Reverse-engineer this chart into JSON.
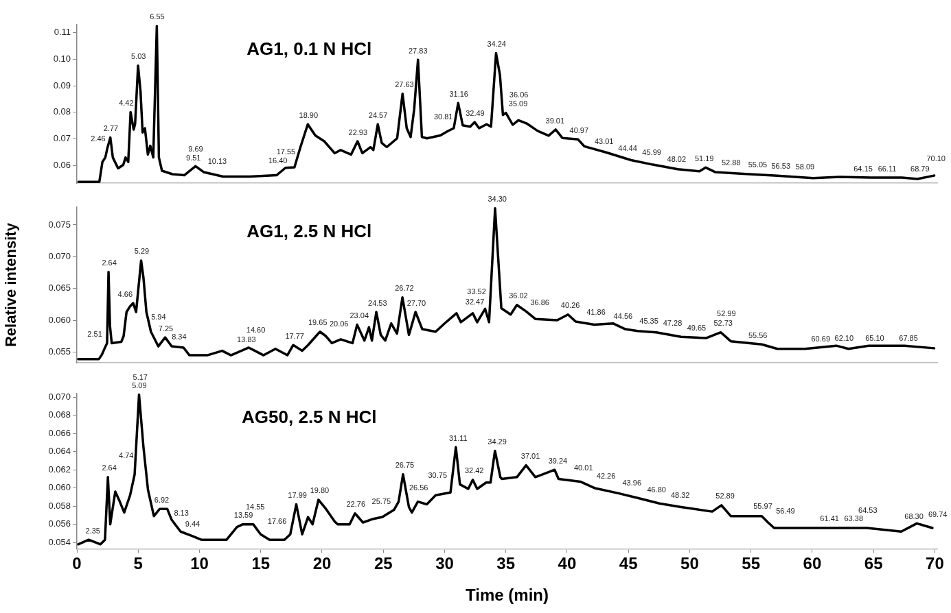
{
  "chart_data": [
    {
      "type": "line",
      "title": "AG1, 0.1 N HCl",
      "color": "#000000",
      "line_style": "solid",
      "grid": false,
      "legend": false,
      "tick_labels": "y",
      "xlim": [
        0,
        70.2
      ],
      "ylim": [
        0.0533,
        0.113
      ],
      "yticks": [
        0.06,
        0.07,
        0.08,
        0.09,
        {
          "value": 0.1,
          "label": "0.10"
        },
        0.11
      ],
      "x": [
        0.13,
        1.83,
        2.08,
        2.32,
        2.49,
        2.73,
        2.93,
        3.36,
        3.78,
        3.97,
        4.19,
        4.38,
        4.63,
        4.75,
        4.99,
        5.19,
        5.36,
        5.55,
        5.79,
        5.99,
        6.23,
        6.52,
        6.69,
        6.94,
        7.79,
        8.76,
        9.68,
        10.34,
        11.92,
        14.1,
        16.29,
        17.02,
        17.75,
        18.24,
        18.84,
        19.45,
        20.18,
        21.03,
        21.52,
        22.37,
        22.9,
        23.29,
        23.95,
        24.19,
        24.55,
        24.87,
        25.28,
        26.13,
        26.57,
        26.91,
        27.23,
        27.52,
        27.83,
        28.15,
        28.56,
        29.66,
        30.26,
        30.75,
        31.11,
        31.48,
        32.09,
        32.45,
        32.82,
        33.42,
        33.79,
        34.2,
        34.52,
        34.76,
        35.0,
        35.56,
        36.02,
        36.7,
        37.59,
        38.49,
        39.06,
        39.62,
        40.89,
        41.4,
        43.18,
        45.21,
        46.99,
        49.02,
        50.8,
        51.31,
        52.07,
        54.61,
        57.15,
        60.07,
        62.24,
        64.78,
        67.32,
        68.58,
        69.86,
        69.95
      ],
      "values": [
        0.0538,
        0.0538,
        0.0613,
        0.063,
        0.0666,
        0.0705,
        0.063,
        0.0589,
        0.0602,
        0.063,
        0.0613,
        0.0801,
        0.0735,
        0.0757,
        0.0976,
        0.0879,
        0.0724,
        0.074,
        0.0641,
        0.0674,
        0.063,
        0.1125,
        0.063,
        0.058,
        0.0567,
        0.0563,
        0.0597,
        0.0575,
        0.0558,
        0.0558,
        0.0563,
        0.0591,
        0.0593,
        0.0669,
        0.0755,
        0.0713,
        0.0691,
        0.0646,
        0.0658,
        0.0641,
        0.0691,
        0.0646,
        0.0669,
        0.0658,
        0.0755,
        0.0685,
        0.0669,
        0.0702,
        0.087,
        0.074,
        0.0707,
        0.0812,
        0.0998,
        0.0707,
        0.0702,
        0.0713,
        0.0729,
        0.074,
        0.0835,
        0.0751,
        0.0746,
        0.0763,
        0.074,
        0.0755,
        0.0746,
        0.1023,
        0.094,
        0.079,
        0.0798,
        0.0753,
        0.077,
        0.0758,
        0.073,
        0.0712,
        0.0735,
        0.0703,
        0.0698,
        0.0672,
        0.0649,
        0.062,
        0.0603,
        0.0586,
        0.0578,
        0.0592,
        0.0575,
        0.0568,
        0.0561,
        0.0552,
        0.0557,
        0.0554,
        0.0554,
        0.0549,
        0.0561,
        0.0562
      ],
      "annotations": [
        {
          "text": "2.46",
          "x": 2.46,
          "y": 0.0666
        },
        {
          "text": "2.77",
          "x": 2.77,
          "y": 0.0705
        },
        {
          "text": "4.42",
          "x": 4.42,
          "y": 0.0801
        },
        {
          "text": "5.03",
          "x": 5.03,
          "y": 0.0976
        },
        {
          "text": "6.55",
          "x": 6.55,
          "y": 0.1125
        },
        {
          "text": "9.51",
          "x": 9.51,
          "y": 0.0595
        },
        {
          "text": "9.69",
          "x": 9.69,
          "y": 0.0597
        },
        {
          "text": "10.13",
          "x": 10.13,
          "y": 0.0582
        },
        {
          "text": "16.40",
          "x": 16.4,
          "y": 0.0563
        },
        {
          "text": "17.55",
          "x": 17.55,
          "y": 0.0593
        },
        {
          "text": "18.90",
          "x": 18.9,
          "y": 0.0755
        },
        {
          "text": "22.93",
          "x": 22.93,
          "y": 0.0691
        },
        {
          "text": "24.57",
          "x": 24.57,
          "y": 0.0755
        },
        {
          "text": "27.63",
          "x": 27.63,
          "y": 0.087
        },
        {
          "text": "27.83",
          "x": 27.83,
          "y": 0.0998
        },
        {
          "text": "30.81",
          "x": 30.81,
          "y": 0.074
        },
        {
          "text": "31.16",
          "x": 31.16,
          "y": 0.0835
        },
        {
          "text": "32.49",
          "x": 32.49,
          "y": 0.0763
        },
        {
          "text": "34.24",
          "x": 34.24,
          "y": 0.1023
        },
        {
          "text": "35.09",
          "x": 35.09,
          "y": 0.0798
        },
        {
          "text": "36.06",
          "x": 36.06,
          "y": 0.077
        },
        {
          "text": "39.01",
          "x": 39.01,
          "y": 0.0735
        },
        {
          "text": "40.97",
          "x": 40.97,
          "y": 0.0698
        },
        {
          "text": "43.01",
          "x": 43.01,
          "y": 0.0649
        },
        {
          "text": "44.44",
          "x": 44.44,
          "y": 0.063
        },
        {
          "text": "45.99",
          "x": 45.99,
          "y": 0.0615
        },
        {
          "text": "48.02",
          "x": 48.02,
          "y": 0.059
        },
        {
          "text": "51.19",
          "x": 51.19,
          "y": 0.0592
        },
        {
          "text": "52.88",
          "x": 52.88,
          "y": 0.0575
        },
        {
          "text": "55.05",
          "x": 55.05,
          "y": 0.0568
        },
        {
          "text": "56.53",
          "x": 56.53,
          "y": 0.0563
        },
        {
          "text": "58.09",
          "x": 58.09,
          "y": 0.0561
        },
        {
          "text": "64.15",
          "x": 64.15,
          "y": 0.0554
        },
        {
          "text": "66.11",
          "x": 66.11,
          "y": 0.0554
        },
        {
          "text": "68.79",
          "x": 68.79,
          "y": 0.0553
        },
        {
          "text": "70.10",
          "x": 70.1,
          "y": 0.0562
        }
      ]
    },
    {
      "type": "line",
      "title": "AG1, 2.5 N HCl",
      "ylabel": "Relative intensity",
      "color": "#000000",
      "line_style": "solid",
      "grid": false,
      "legend": false,
      "tick_labels": "y",
      "xlim": [
        0,
        70.2
      ],
      "ylim": [
        0.0533,
        0.0778
      ],
      "yticks": [
        0.055,
        {
          "value": 0.06,
          "label": "0.060"
        },
        0.065,
        {
          "value": 0.07,
          "label": "0.070"
        },
        0.075
      ],
      "x": [
        0.11,
        1.8,
        2.04,
        2.29,
        2.46,
        2.58,
        2.7,
        2.84,
        3.62,
        3.81,
        4.05,
        4.34,
        4.59,
        4.83,
        5.24,
        5.43,
        5.67,
        6.04,
        6.64,
        7.2,
        7.73,
        8.7,
        9.18,
        10.64,
        11.85,
        12.57,
        14.02,
        15.23,
        16.2,
        17.17,
        17.65,
        18.38,
        18.86,
        19.83,
        20.32,
        20.8,
        21.53,
        22.49,
        22.86,
        23.46,
        23.83,
        24.07,
        24.43,
        24.79,
        25.16,
        25.64,
        26.12,
        26.56,
        27.09,
        27.63,
        28.18,
        29.27,
        30.0,
        30.97,
        31.33,
        32.3,
        32.66,
        33.31,
        33.63,
        34.12,
        34.63,
        35.39,
        35.9,
        36.65,
        37.41,
        39.19,
        40.07,
        40.7,
        42.22,
        43.74,
        44.75,
        45.76,
        47.28,
        49.3,
        51.33,
        52.54,
        53.35,
        55.88,
        57.15,
        59.42,
        61.96,
        62.96,
        64.61,
        67.52,
        69.95
      ],
      "values": [
        0.0539,
        0.0539,
        0.0546,
        0.0557,
        0.0564,
        0.0676,
        0.0591,
        0.0564,
        0.0566,
        0.0575,
        0.0613,
        0.0622,
        0.0627,
        0.0613,
        0.0694,
        0.0667,
        0.0613,
        0.0582,
        0.0559,
        0.0573,
        0.0559,
        0.0557,
        0.0545,
        0.0545,
        0.0552,
        0.0545,
        0.0557,
        0.0545,
        0.0555,
        0.0545,
        0.0561,
        0.0552,
        0.0561,
        0.0582,
        0.0575,
        0.0564,
        0.057,
        0.0564,
        0.0593,
        0.0568,
        0.0589,
        0.0568,
        0.0613,
        0.0577,
        0.0568,
        0.0595,
        0.0579,
        0.0636,
        0.0577,
        0.0613,
        0.0586,
        0.0582,
        0.0595,
        0.0611,
        0.0597,
        0.0611,
        0.0597,
        0.0618,
        0.0597,
        0.0776,
        0.0619,
        0.0609,
        0.0624,
        0.0614,
        0.0602,
        0.06,
        0.0609,
        0.0598,
        0.0593,
        0.0595,
        0.0586,
        0.0583,
        0.0581,
        0.0574,
        0.0572,
        0.0581,
        0.0567,
        0.0562,
        0.0555,
        0.0555,
        0.056,
        0.0555,
        0.056,
        0.056,
        0.0556
      ],
      "annotations": [
        {
          "text": "2.51",
          "x": 2.51,
          "y": 0.0564
        },
        {
          "text": "2.64",
          "x": 2.64,
          "y": 0.0676
        },
        {
          "text": "4.66",
          "x": 4.66,
          "y": 0.0627
        },
        {
          "text": "5.29",
          "x": 5.29,
          "y": 0.0694
        },
        {
          "text": "5.94",
          "x": 5.94,
          "y": 0.059
        },
        {
          "text": "7.25",
          "x": 7.25,
          "y": 0.0573
        },
        {
          "text": "8.34",
          "x": 8.34,
          "y": 0.0557
        },
        {
          "text": "13.83",
          "x": 13.83,
          "y": 0.0555
        },
        {
          "text": "14.60",
          "x": 14.6,
          "y": 0.0557
        },
        {
          "text": "17.77",
          "x": 17.77,
          "y": 0.0561
        },
        {
          "text": "19.65",
          "x": 19.65,
          "y": 0.0582
        },
        {
          "text": "20.06",
          "x": 20.06,
          "y": 0.058
        },
        {
          "text": "23.04",
          "x": 23.04,
          "y": 0.0593
        },
        {
          "text": "24.53",
          "x": 24.53,
          "y": 0.0613
        },
        {
          "text": "26.72",
          "x": 26.72,
          "y": 0.0636
        },
        {
          "text": "27.70",
          "x": 27.7,
          "y": 0.0613
        },
        {
          "text": "32.47",
          "x": 32.47,
          "y": 0.0611
        },
        {
          "text": "33.52",
          "x": 33.52,
          "y": 0.0618
        },
        {
          "text": "34.30",
          "x": 34.3,
          "y": 0.0776
        },
        {
          "text": "36.02",
          "x": 36.02,
          "y": 0.0624
        },
        {
          "text": "36.86",
          "x": 36.86,
          "y": 0.0614
        },
        {
          "text": "40.26",
          "x": 40.26,
          "y": 0.0609
        },
        {
          "text": "41.86",
          "x": 41.86,
          "y": 0.0598
        },
        {
          "text": "44.56",
          "x": 44.56,
          "y": 0.059
        },
        {
          "text": "45.35",
          "x": 45.35,
          "y": 0.0585
        },
        {
          "text": "47.28",
          "x": 47.28,
          "y": 0.0581
        },
        {
          "text": "49.65",
          "x": 49.65,
          "y": 0.0574
        },
        {
          "text": "52.73",
          "x": 52.73,
          "y": 0.0581
        },
        {
          "text": "52.99",
          "x": 52.99,
          "y": 0.057
        },
        {
          "text": "55.56",
          "x": 55.56,
          "y": 0.0562
        },
        {
          "text": "60.69",
          "x": 60.69,
          "y": 0.0556
        },
        {
          "text": "62.10",
          "x": 62.1,
          "y": 0.0558
        },
        {
          "text": "65.10",
          "x": 65.1,
          "y": 0.0558
        },
        {
          "text": "67.85",
          "x": 67.85,
          "y": 0.0558
        }
      ]
    },
    {
      "type": "line",
      "title": "AG50, 2.5 N HCl",
      "xlabel": "Time (min)",
      "color": "#000000",
      "line_style": "solid",
      "grid": false,
      "legend": false,
      "xlim": [
        0,
        70.2
      ],
      "ylim": [
        0.0533,
        0.0704
      ],
      "xticks": [
        0,
        5,
        10,
        15,
        20,
        25,
        30,
        35,
        40,
        45,
        50,
        55,
        60,
        65,
        70
      ],
      "yticks": [
        0.054,
        0.056,
        0.058,
        {
          "value": 0.06,
          "label": "0.060"
        },
        0.062,
        0.064,
        0.066,
        0.068,
        {
          "value": 0.07,
          "label": "0.070"
        }
      ],
      "x": [
        0.11,
        0.96,
        1.92,
        2.29,
        2.53,
        2.72,
        3.13,
        3.5,
        3.86,
        4.34,
        4.71,
        5.07,
        5.43,
        5.8,
        6.28,
        6.76,
        7.37,
        7.73,
        8.46,
        9.43,
        10.15,
        12.21,
        13.06,
        13.54,
        14.39,
        14.99,
        15.72,
        16.93,
        17.41,
        17.9,
        18.38,
        18.86,
        19.23,
        19.71,
        20.32,
        21.04,
        21.28,
        22.25,
        22.69,
        23.34,
        24.19,
        24.92,
        25.88,
        26.25,
        26.61,
        27.09,
        27.33,
        27.82,
        28.55,
        29.27,
        30.48,
        30.92,
        31.25,
        31.93,
        32.3,
        32.66,
        33.39,
        33.75,
        34.11,
        34.55,
        34.67,
        35.9,
        36.65,
        37.41,
        38.98,
        39.3,
        41.08,
        42.22,
        44.24,
        45.76,
        47.53,
        49.3,
        51.83,
        52.59,
        53.35,
        55.88,
        56.39,
        56.89,
        59.42,
        64.48,
        67.26,
        68.53,
        69.8
      ],
      "values": [
        0.0538,
        0.0543,
        0.0538,
        0.0543,
        0.0612,
        0.056,
        0.0596,
        0.0585,
        0.0573,
        0.0592,
        0.0615,
        0.0703,
        0.0645,
        0.0598,
        0.0569,
        0.0577,
        0.0577,
        0.0565,
        0.0552,
        0.0547,
        0.0543,
        0.0543,
        0.0557,
        0.056,
        0.056,
        0.0549,
        0.0543,
        0.0543,
        0.0549,
        0.0582,
        0.0549,
        0.0568,
        0.056,
        0.0587,
        0.0577,
        0.0563,
        0.056,
        0.056,
        0.0572,
        0.0562,
        0.0566,
        0.0568,
        0.0576,
        0.0585,
        0.0615,
        0.0579,
        0.0573,
        0.0585,
        0.0582,
        0.0592,
        0.0595,
        0.0645,
        0.0604,
        0.0599,
        0.0609,
        0.0599,
        0.0606,
        0.0606,
        0.0641,
        0.0612,
        0.061,
        0.0612,
        0.0625,
        0.0612,
        0.062,
        0.061,
        0.0607,
        0.06,
        0.0594,
        0.0589,
        0.0583,
        0.0579,
        0.0574,
        0.0581,
        0.0569,
        0.0569,
        0.0562,
        0.0556,
        0.0556,
        0.0556,
        0.0552,
        0.0561,
        0.0556
      ],
      "annotations": [
        {
          "text": "2.35",
          "x": 2.35,
          "y": 0.0543
        },
        {
          "text": "2.64",
          "x": 2.64,
          "y": 0.0612
        },
        {
          "text": "4.74",
          "x": 4.74,
          "y": 0.0615
        },
        {
          "text": "5.09",
          "x": 5.09,
          "y": 0.0703
        },
        {
          "text": "5.17",
          "x": 5.17,
          "y": 0.0703
        },
        {
          "text": "6.92",
          "x": 6.92,
          "y": 0.0577
        },
        {
          "text": "8.13",
          "x": 8.13,
          "y": 0.056
        },
        {
          "text": "9.44",
          "x": 9.44,
          "y": 0.055
        },
        {
          "text": "13.59",
          "x": 13.59,
          "y": 0.056
        },
        {
          "text": "14.55",
          "x": 14.55,
          "y": 0.056
        },
        {
          "text": "17.66",
          "x": 17.66,
          "y": 0.0553
        },
        {
          "text": "17.99",
          "x": 17.99,
          "y": 0.0582
        },
        {
          "text": "19.80",
          "x": 19.8,
          "y": 0.0587
        },
        {
          "text": "22.76",
          "x": 22.76,
          "y": 0.0572
        },
        {
          "text": "25.75",
          "x": 25.75,
          "y": 0.0575
        },
        {
          "text": "26.56",
          "x": 26.56,
          "y": 0.059
        },
        {
          "text": "26.75",
          "x": 26.75,
          "y": 0.0615
        },
        {
          "text": "30.75",
          "x": 30.75,
          "y": 0.0595
        },
        {
          "text": "31.11",
          "x": 31.11,
          "y": 0.0645
        },
        {
          "text": "32.42",
          "x": 32.42,
          "y": 0.0609
        },
        {
          "text": "34.29",
          "x": 34.29,
          "y": 0.0641
        },
        {
          "text": "37.01",
          "x": 37.01,
          "y": 0.0625
        },
        {
          "text": "39.24",
          "x": 39.24,
          "y": 0.062
        },
        {
          "text": "40.01",
          "x": 40.01,
          "y": 0.0612
        },
        {
          "text": "42.26",
          "x": 42.26,
          "y": 0.0603
        },
        {
          "text": "43.96",
          "x": 43.96,
          "y": 0.0596
        },
        {
          "text": "46.80",
          "x": 46.8,
          "y": 0.0588
        },
        {
          "text": "48.32",
          "x": 48.32,
          "y": 0.0582
        },
        {
          "text": "52.89",
          "x": 52.89,
          "y": 0.0581
        },
        {
          "text": "55.97",
          "x": 55.97,
          "y": 0.057
        },
        {
          "text": "56.49",
          "x": 56.49,
          "y": 0.0565
        },
        {
          "text": "61.41",
          "x": 61.41,
          "y": 0.0556
        },
        {
          "text": "63.38",
          "x": 63.38,
          "y": 0.0556
        },
        {
          "text": "64.53",
          "x": 64.53,
          "y": 0.0556
        },
        {
          "text": "68.30",
          "x": 68.3,
          "y": 0.0556
        },
        {
          "text": "69.74",
          "x": 69.74,
          "y": 0.0561
        }
      ]
    }
  ]
}
